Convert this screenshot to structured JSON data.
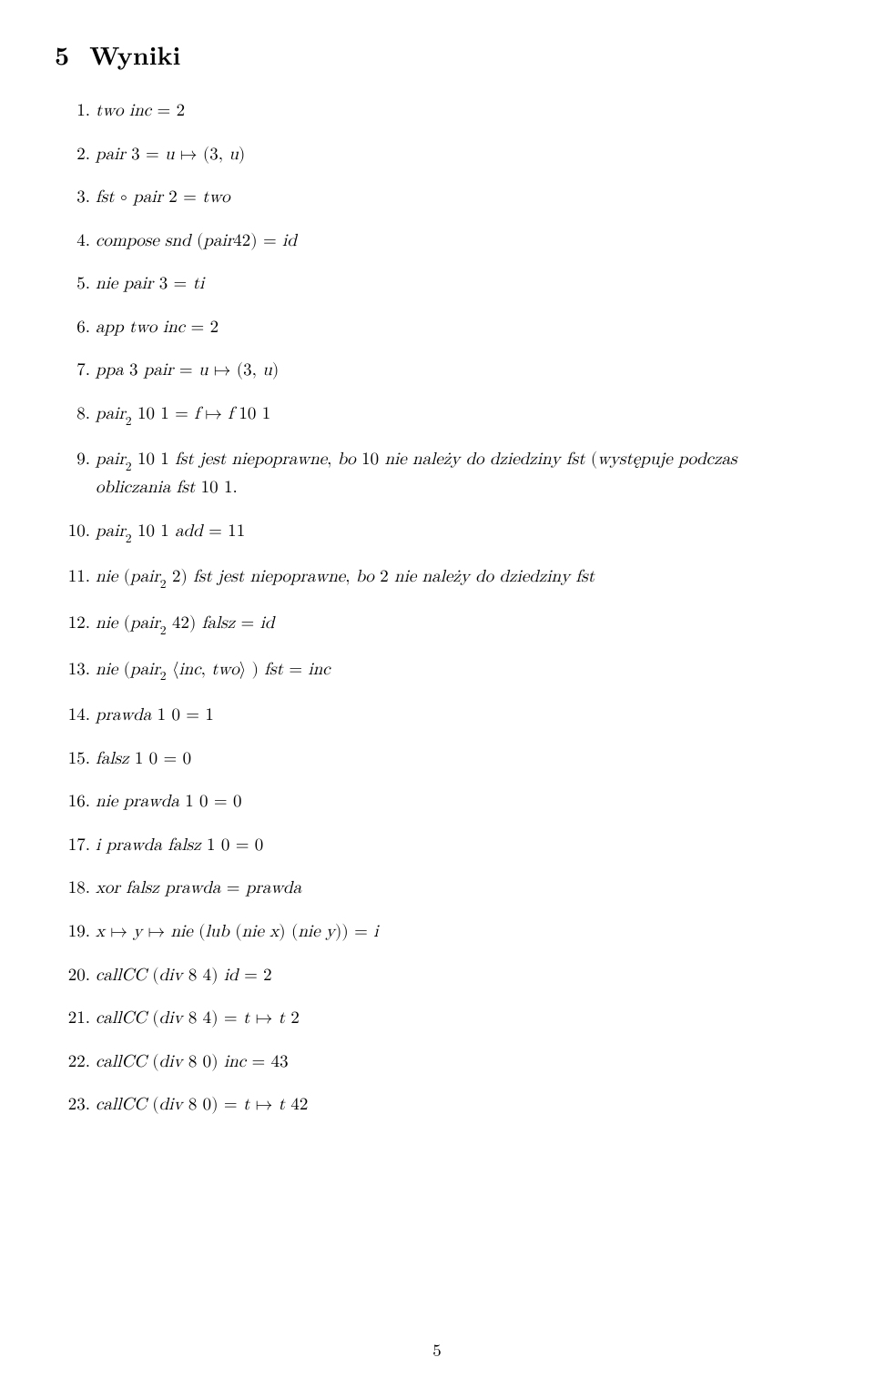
{
  "section": {
    "number": "5",
    "title": "Wyniki"
  },
  "items": [
    "two inc = 2",
    "pair 3 = u ↦ (3, u)",
    "fst  ∘  pair 2 = two",
    "compose snd (pair42) = id",
    "nie pair 3 = ti",
    "app two inc = 2",
    "ppa 3 pair = u ↦ (3, u)",
    "pair₂ 10 1 = f ↦ f 10 1",
    "pair₂ 10 1 fst jest niepoprawne, bo 10 nie należy do dziedziny fst (występuje podczas obliczania fst 10 1.",
    "pair₂ 10 1 add = 11",
    "nie (pair₂ 2) fst jest niepoprawne, bo 2 nie należy do dziedziny fst",
    "nie (pair₂ 42) falsz = id",
    "nie (pair₂ ⟨inc, two⟩ ) fst = inc",
    "prawda 1 0 = 1",
    "falsz 1 0 = 0",
    "nie prawda 1 0 = 0",
    "i prawda falsz 1 0 = 0",
    "xor falsz prawda = prawda",
    "x ↦ y ↦ nie (lub (nie x) (nie y)) = i",
    "callCC (div 8 4) id = 2",
    "callCC (div 8 4) = t ↦ t 2",
    "callCC (div 8 0) inc = 43",
    "callCC (div 8 0) = t ↦ t 42"
  ],
  "page_number": "5",
  "style": {
    "background_color": "#ffffff",
    "text_color": "#000000",
    "heading_fontsize": 28,
    "body_fontsize": 19,
    "line_spacing": 20
  }
}
